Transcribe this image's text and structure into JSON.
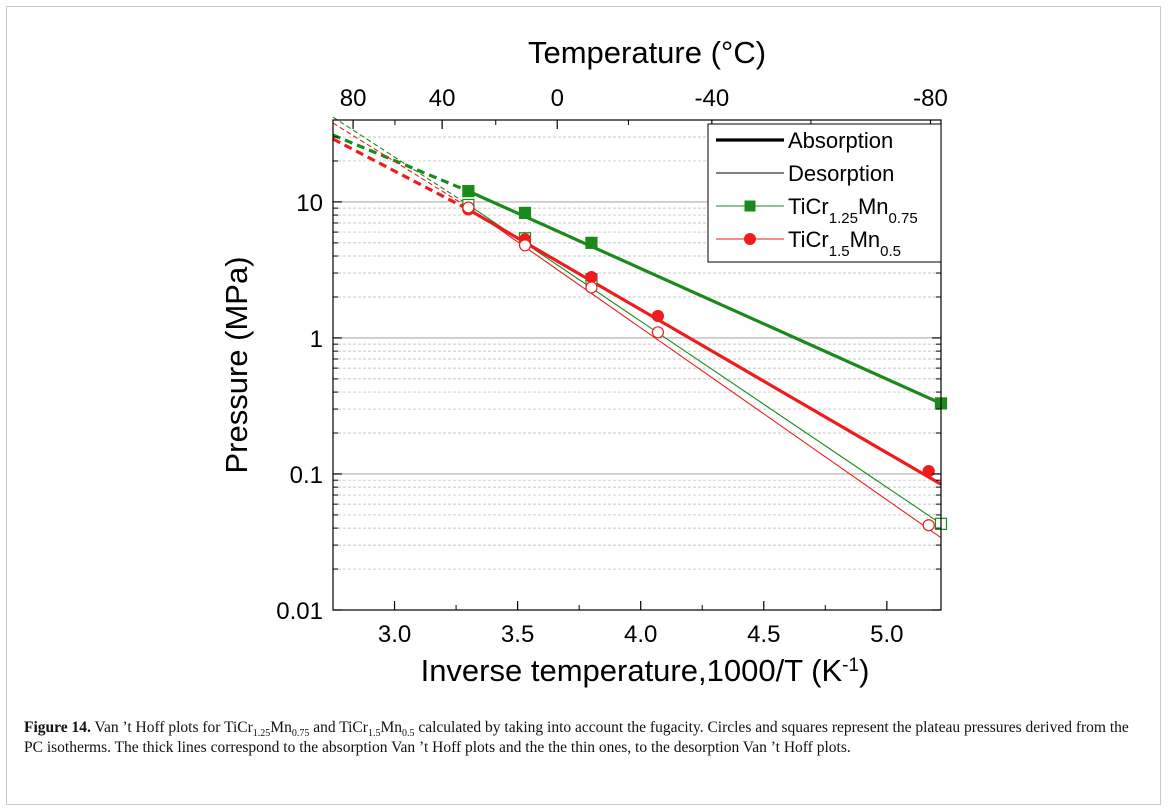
{
  "chart_data": {
    "type": "line",
    "y_scale": "log",
    "xlabel": "Inverse temperature,1000/T (K",
    "xlabel_sup": "-1",
    "xlabel_close": ")",
    "ylabel": "Pressure (MPa)",
    "top_axis_label": "Temperature (°C)",
    "xlim": [
      2.75,
      5.22
    ],
    "ylim": [
      0.01,
      40
    ],
    "x_ticks": [
      3.0,
      3.5,
      4.0,
      4.5,
      5.0
    ],
    "x_tick_labels": [
      "3.0",
      "3.5",
      "4.0",
      "4.5",
      "5.0"
    ],
    "y_ticks": [
      0.01,
      0.1,
      1,
      10
    ],
    "y_tick_labels": [
      "0.01",
      "0.1",
      "1",
      "10"
    ],
    "top_ticks": [
      80,
      40,
      0,
      -40,
      -80
    ],
    "top_tick_labels": [
      "80",
      "40",
      "0",
      "-40",
      "-80"
    ],
    "grid": "horizontal dashed minor, solid major",
    "legend_position": "top-right",
    "legend": [
      {
        "label": "Absorption",
        "style": "thick-line",
        "color": "#000000"
      },
      {
        "label": "Desorption",
        "style": "thin-line",
        "color": "#000000"
      },
      {
        "label": "TiCr",
        "sub1": "1.25",
        "mid": "Mn",
        "sub2": "0.75",
        "style": "square",
        "color": "#1a8a1a"
      },
      {
        "label": "TiCr",
        "sub1": "1.5",
        "mid": "Mn",
        "sub2": "0.5",
        "style": "circle",
        "color": "#ee1c1c"
      }
    ],
    "series": [
      {
        "name": "TiCr1.25Mn0.75 absorption",
        "color": "#1a8a1a",
        "thick": true,
        "marker": "square",
        "filled": true,
        "points": [
          [
            3.3,
            12.0
          ],
          [
            3.53,
            8.3
          ],
          [
            3.8,
            5.0
          ],
          [
            5.22,
            0.33
          ]
        ],
        "fit": [
          [
            3.3,
            12.0
          ],
          [
            5.22,
            0.33
          ]
        ],
        "extrap": [
          [
            2.75,
            31
          ],
          [
            3.3,
            12.0
          ]
        ]
      },
      {
        "name": "TiCr1.25Mn0.75 desorption",
        "color": "#1a8a1a",
        "thick": false,
        "marker": "square",
        "filled": false,
        "points": [
          [
            3.3,
            9.5
          ],
          [
            3.53,
            5.4
          ],
          [
            3.8,
            2.7
          ],
          [
            5.22,
            0.043
          ]
        ],
        "fit": [
          [
            3.3,
            9.5
          ],
          [
            5.22,
            0.043
          ]
        ],
        "extrap": [
          [
            2.75,
            42
          ],
          [
            3.3,
            9.5
          ]
        ]
      },
      {
        "name": "TiCr1.5Mn0.5 absorption",
        "color": "#ee1c1c",
        "thick": true,
        "marker": "circle",
        "filled": true,
        "points": [
          [
            3.3,
            8.8
          ],
          [
            3.53,
            5.3
          ],
          [
            3.8,
            2.8
          ],
          [
            4.07,
            1.45
          ],
          [
            5.17,
            0.105
          ]
        ],
        "fit": [
          [
            3.3,
            8.8
          ],
          [
            5.22,
            0.084
          ]
        ],
        "extrap": [
          [
            2.75,
            29
          ],
          [
            3.3,
            8.8
          ]
        ]
      },
      {
        "name": "TiCr1.5Mn0.5 desorption",
        "color": "#ee1c1c",
        "thick": false,
        "marker": "circle",
        "filled": false,
        "points": [
          [
            3.3,
            9.1
          ],
          [
            3.53,
            4.8
          ],
          [
            3.8,
            2.35
          ],
          [
            4.07,
            1.1
          ],
          [
            5.17,
            0.042
          ]
        ],
        "fit": [
          [
            3.3,
            9.1
          ],
          [
            5.22,
            0.034
          ]
        ],
        "extrap": [
          [
            2.75,
            38
          ],
          [
            3.3,
            9.1
          ]
        ]
      }
    ]
  },
  "caption": {
    "label": "Figure 14.",
    "t1": " Van ’t Hoff plots for TiCr",
    "s1": "1.25",
    "t2": "Mn",
    "s2": "0.75",
    "t3": " and TiCr",
    "s3": "1.5",
    "t4": "Mn",
    "s4": "0.5",
    "t5": " calculated by taking into account the fugacity. Circles and squares represent the plateau pressures derived from the PC isotherms. The thick lines correspond to the absorption Van ’t Hoff plots and the the thin ones, to the desorption Van ’t Hoff plots."
  }
}
